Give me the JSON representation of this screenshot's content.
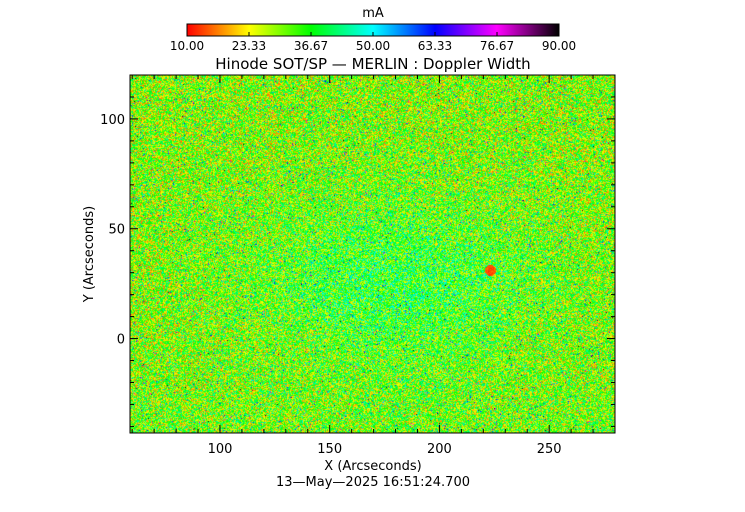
{
  "chart_data": {
    "type": "heatmap",
    "title": "Hinode SOT/SP — MERLIN : Doppler Width",
    "xlabel": "X (Arcseconds)",
    "ylabel": "Y (Arcseconds)",
    "xlim": [
      59,
      280
    ],
    "ylim": [
      -43,
      120
    ],
    "xticks": [
      "100",
      "150",
      "200",
      "250"
    ],
    "xtick_values": [
      100,
      150,
      200,
      250
    ],
    "yticks": [
      "0",
      "50",
      "100"
    ],
    "ytick_values": [
      0,
      50,
      100
    ],
    "colorbar": {
      "unit": "mA",
      "min": 10.0,
      "max": 90.0,
      "tick_labels": [
        "10.00",
        "23.33",
        "36.67",
        "50.00",
        "63.33",
        "76.67",
        "90.00"
      ],
      "tick_values": [
        10.0,
        23.33,
        36.67,
        50.0,
        63.33,
        76.67,
        90.0
      ],
      "colormap": [
        "#ff0000",
        "#ffff00",
        "#00ff00",
        "#00ffff",
        "#0000ff",
        "#ff00ff",
        "#000000"
      ]
    },
    "typical_value_range": [
      15,
      45
    ],
    "grid": false,
    "timestamp": "13—May—2025 16:51:24.700"
  }
}
